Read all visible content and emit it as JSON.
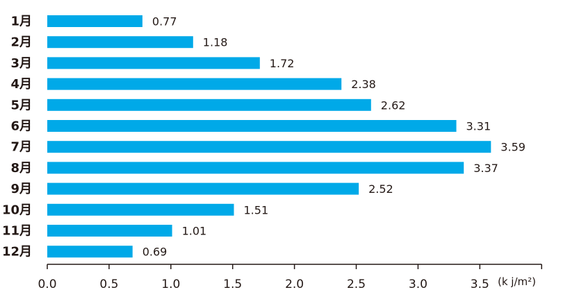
{
  "chart_data": {
    "type": "bar",
    "orientation": "horizontal",
    "categories": [
      "1月",
      "2月",
      "3月",
      "4月",
      "5月",
      "6月",
      "7月",
      "8月",
      "9月",
      "10月",
      "11月",
      "12月"
    ],
    "values": [
      0.77,
      1.18,
      1.72,
      2.38,
      2.62,
      3.31,
      3.59,
      3.37,
      2.52,
      1.51,
      1.01,
      0.69
    ],
    "value_labels": [
      "0.77",
      "1.18",
      "1.72",
      "2.38",
      "2.62",
      "3.31",
      "3.59",
      "3.37",
      "2.52",
      "1.51",
      "1.01",
      "0.69"
    ],
    "x_ticks": [
      "0.0",
      "0.5",
      "1.0",
      "1.5",
      "2.0",
      "2.5",
      "3.0",
      "3.5"
    ],
    "x_unit": "(k j/m²)",
    "xlim": [
      0,
      4.0
    ],
    "bar_color": "#00a9e8",
    "axis_color": "#231815",
    "grid": false,
    "legend": "none"
  }
}
